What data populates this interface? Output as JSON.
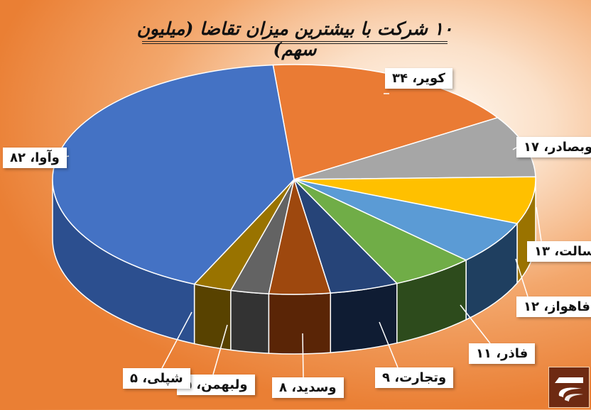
{
  "chart_data": {
    "type": "pie",
    "title": "۱۰ شرکت با بیشترین میزان تقاضا (میلیون سهم)",
    "slices": [
      {
        "label": "کویر",
        "value": 34,
        "display_value": "۳۴",
        "color": "#ea7b34",
        "side_color": "#9e4a14"
      },
      {
        "label": "وبصادر",
        "value": 17,
        "display_value": "۱۷",
        "color": "#a6a6a6",
        "side_color": "#636363"
      },
      {
        "label": "وسالت",
        "value": 13,
        "display_value": "۱۳",
        "color": "#ffc000",
        "side_color": "#9a7300"
      },
      {
        "label": "فاهواز",
        "value": 12,
        "display_value": "۱۲",
        "color": "#5b9bd5",
        "side_color": "#1f3f60"
      },
      {
        "label": "فاذر",
        "value": 11,
        "display_value": "۱۱",
        "color": "#70ad47",
        "side_color": "#2d4b1c"
      },
      {
        "label": "وتجارت",
        "value": 9,
        "display_value": "۹",
        "color": "#264478",
        "side_color": "#0f1c33"
      },
      {
        "label": "وسدید",
        "value": 8,
        "display_value": "۸",
        "color": "#9e480e",
        "side_color": "#5a2506"
      },
      {
        "label": "ولبهمن",
        "value": 5,
        "display_value": "۵",
        "color": "#636363",
        "side_color": "#333333"
      },
      {
        "label": "شپلی",
        "value": 5,
        "display_value": "۵",
        "color": "#997300",
        "side_color": "#584200"
      },
      {
        "label": "وآوا",
        "value": 82,
        "display_value": "۸۲",
        "color": "#4472c4",
        "side_color": "#2c4f8f"
      }
    ]
  }
}
